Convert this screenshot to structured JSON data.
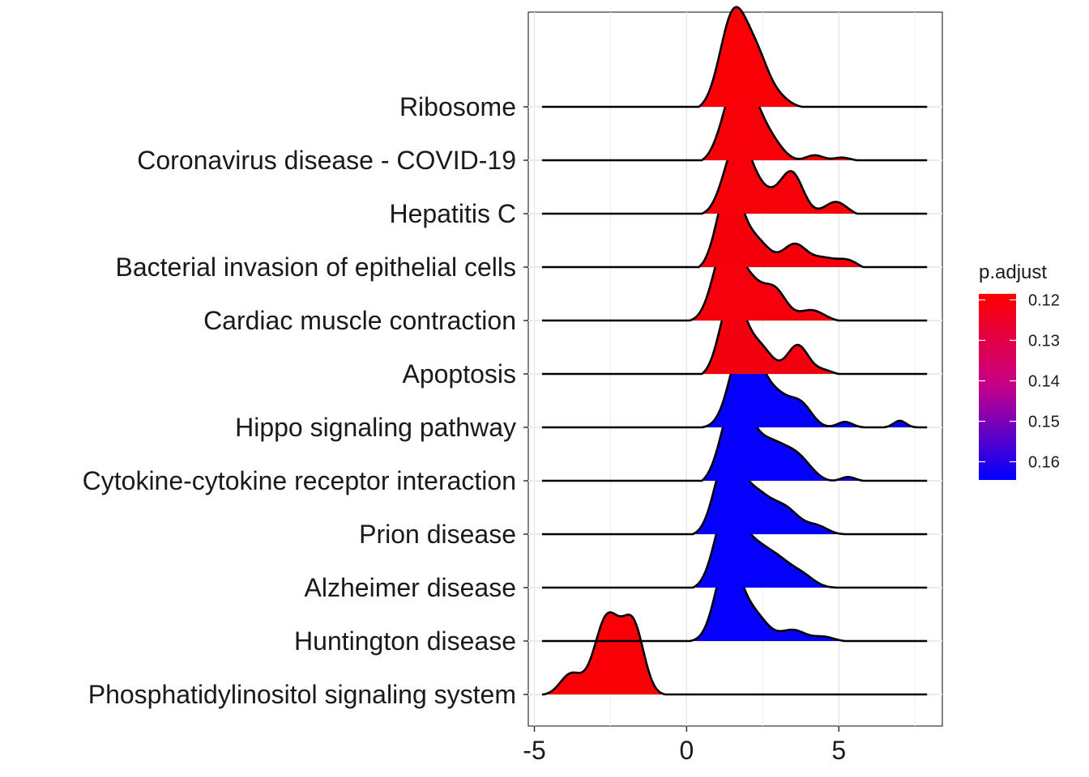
{
  "chart_data": {
    "type": "ridgeline",
    "title": "",
    "xlabel": "",
    "ylabel": "",
    "xlim": [
      -5.2,
      8.4
    ],
    "x_ticks": [
      -5,
      0,
      5
    ],
    "x_tick_labels": [
      "-5",
      "0",
      "5"
    ],
    "grid": true,
    "legend": {
      "title": "p.adjust",
      "position": "right",
      "range": [
        0.1185,
        0.1645
      ],
      "ticks": [
        0.12,
        0.13,
        0.14,
        0.15,
        0.16
      ],
      "tick_labels": [
        "0.12",
        "0.13",
        "0.14",
        "0.15",
        "0.16"
      ],
      "colors": {
        "low": "#ff0000",
        "high": "#0000ff"
      }
    },
    "series": [
      {
        "name": "Ribosome",
        "p_adjust": 0.1195,
        "x0": 0.4,
        "x1": 3.8,
        "peaks": [
          [
            1.55,
            1.0,
            0.45
          ],
          [
            2.35,
            0.45,
            0.4
          ],
          [
            3.1,
            0.08,
            0.35
          ]
        ]
      },
      {
        "name": "Coronavirus disease - COVID-19",
        "p_adjust": 0.1198,
        "x0": 0.5,
        "x1": 5.6,
        "peaks": [
          [
            1.75,
            0.95,
            0.5
          ],
          [
            2.7,
            0.22,
            0.45
          ],
          [
            4.2,
            0.07,
            0.3
          ],
          [
            5.1,
            0.04,
            0.3
          ]
        ]
      },
      {
        "name": "Hepatitis C",
        "p_adjust": 0.1201,
        "x0": 0.5,
        "x1": 5.6,
        "peaks": [
          [
            1.7,
            0.8,
            0.45
          ],
          [
            2.6,
            0.18,
            0.4
          ],
          [
            3.45,
            0.45,
            0.38
          ],
          [
            4.9,
            0.15,
            0.38
          ]
        ]
      },
      {
        "name": "Bacterial invasion of epithelial cells",
        "p_adjust": 0.1204,
        "x0": 0.4,
        "x1": 5.8,
        "peaks": [
          [
            1.4,
            0.88,
            0.4
          ],
          [
            2.3,
            0.3,
            0.45
          ],
          [
            3.55,
            0.27,
            0.4
          ],
          [
            4.5,
            0.12,
            0.4
          ],
          [
            5.3,
            0.1,
            0.35
          ]
        ]
      },
      {
        "name": "Cardiac muscle contraction",
        "p_adjust": 0.1206,
        "x0": 0.1,
        "x1": 5.0,
        "peaks": [
          [
            1.3,
            0.82,
            0.42
          ],
          [
            2.1,
            0.35,
            0.4
          ],
          [
            2.9,
            0.32,
            0.38
          ],
          [
            4.1,
            0.12,
            0.42
          ]
        ]
      },
      {
        "name": "Apoptosis",
        "p_adjust": 0.1208,
        "x0": 0.5,
        "x1": 5.0,
        "peaks": [
          [
            1.5,
            0.85,
            0.4
          ],
          [
            2.4,
            0.3,
            0.42
          ],
          [
            3.65,
            0.32,
            0.35
          ],
          [
            4.5,
            0.05,
            0.3
          ]
        ]
      },
      {
        "name": "Hippo signaling pathway",
        "p_adjust": 0.1638,
        "x0": 0.5,
        "x1": 7.8,
        "peaks": [
          [
            1.9,
            0.92,
            0.45
          ],
          [
            2.9,
            0.35,
            0.55
          ],
          [
            3.8,
            0.18,
            0.35
          ],
          [
            5.2,
            0.06,
            0.25
          ],
          [
            7.0,
            0.07,
            0.2
          ]
        ]
      },
      {
        "name": "Cytokine-cytokine receptor interaction",
        "p_adjust": 0.1638,
        "x0": 0.5,
        "x1": 5.8,
        "peaks": [
          [
            1.6,
            0.88,
            0.45
          ],
          [
            2.7,
            0.42,
            0.6
          ],
          [
            3.7,
            0.2,
            0.45
          ],
          [
            5.3,
            0.05,
            0.25
          ]
        ]
      },
      {
        "name": "Prion disease",
        "p_adjust": 0.1638,
        "x0": 0.2,
        "x1": 5.2,
        "peaks": [
          [
            1.35,
            0.85,
            0.42
          ],
          [
            2.25,
            0.38,
            0.45
          ],
          [
            3.2,
            0.28,
            0.5
          ],
          [
            4.3,
            0.08,
            0.35
          ]
        ]
      },
      {
        "name": "Alzheimer disease",
        "p_adjust": 0.1638,
        "x0": 0.2,
        "x1": 5.4,
        "peaks": [
          [
            1.35,
            0.85,
            0.42
          ],
          [
            2.2,
            0.38,
            0.45
          ],
          [
            3.0,
            0.26,
            0.45
          ],
          [
            3.8,
            0.12,
            0.4
          ]
        ]
      },
      {
        "name": "Huntington disease",
        "p_adjust": 0.1638,
        "x0": 0.1,
        "x1": 5.2,
        "peaks": [
          [
            1.35,
            0.85,
            0.4
          ],
          [
            2.2,
            0.28,
            0.45
          ],
          [
            3.5,
            0.12,
            0.4
          ],
          [
            4.5,
            0.05,
            0.35
          ]
        ]
      },
      {
        "name": "Phosphatidylinositol signaling system",
        "p_adjust": 0.1195,
        "x0": -4.7,
        "x1": -0.7,
        "peaks": [
          [
            -2.6,
            0.82,
            0.42
          ],
          [
            -1.75,
            0.7,
            0.35
          ],
          [
            -3.8,
            0.22,
            0.35
          ]
        ]
      }
    ]
  }
}
